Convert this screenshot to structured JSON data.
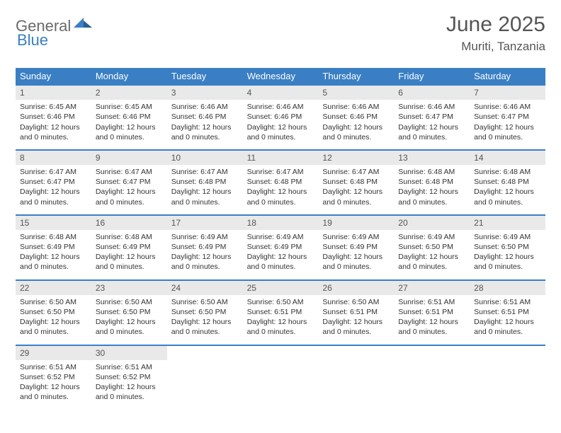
{
  "logo": {
    "text1": "General",
    "text2": "Blue"
  },
  "header": {
    "title": "June 2025",
    "location": "Muriti, Tanzania"
  },
  "colors": {
    "brand_blue": "#3a7fc4",
    "logo_gray": "#6a6a6a",
    "daybar_bg": "#e9e9e9",
    "text": "#333333",
    "title_text": "#555555"
  },
  "weekdays": [
    "Sunday",
    "Monday",
    "Tuesday",
    "Wednesday",
    "Thursday",
    "Friday",
    "Saturday"
  ],
  "weeks": [
    [
      {
        "n": "1",
        "sr": "6:45 AM",
        "ss": "6:46 PM",
        "dl": "12 hours and 0 minutes."
      },
      {
        "n": "2",
        "sr": "6:45 AM",
        "ss": "6:46 PM",
        "dl": "12 hours and 0 minutes."
      },
      {
        "n": "3",
        "sr": "6:46 AM",
        "ss": "6:46 PM",
        "dl": "12 hours and 0 minutes."
      },
      {
        "n": "4",
        "sr": "6:46 AM",
        "ss": "6:46 PM",
        "dl": "12 hours and 0 minutes."
      },
      {
        "n": "5",
        "sr": "6:46 AM",
        "ss": "6:46 PM",
        "dl": "12 hours and 0 minutes."
      },
      {
        "n": "6",
        "sr": "6:46 AM",
        "ss": "6:47 PM",
        "dl": "12 hours and 0 minutes."
      },
      {
        "n": "7",
        "sr": "6:46 AM",
        "ss": "6:47 PM",
        "dl": "12 hours and 0 minutes."
      }
    ],
    [
      {
        "n": "8",
        "sr": "6:47 AM",
        "ss": "6:47 PM",
        "dl": "12 hours and 0 minutes."
      },
      {
        "n": "9",
        "sr": "6:47 AM",
        "ss": "6:47 PM",
        "dl": "12 hours and 0 minutes."
      },
      {
        "n": "10",
        "sr": "6:47 AM",
        "ss": "6:48 PM",
        "dl": "12 hours and 0 minutes."
      },
      {
        "n": "11",
        "sr": "6:47 AM",
        "ss": "6:48 PM",
        "dl": "12 hours and 0 minutes."
      },
      {
        "n": "12",
        "sr": "6:47 AM",
        "ss": "6:48 PM",
        "dl": "12 hours and 0 minutes."
      },
      {
        "n": "13",
        "sr": "6:48 AM",
        "ss": "6:48 PM",
        "dl": "12 hours and 0 minutes."
      },
      {
        "n": "14",
        "sr": "6:48 AM",
        "ss": "6:48 PM",
        "dl": "12 hours and 0 minutes."
      }
    ],
    [
      {
        "n": "15",
        "sr": "6:48 AM",
        "ss": "6:49 PM",
        "dl": "12 hours and 0 minutes."
      },
      {
        "n": "16",
        "sr": "6:48 AM",
        "ss": "6:49 PM",
        "dl": "12 hours and 0 minutes."
      },
      {
        "n": "17",
        "sr": "6:49 AM",
        "ss": "6:49 PM",
        "dl": "12 hours and 0 minutes."
      },
      {
        "n": "18",
        "sr": "6:49 AM",
        "ss": "6:49 PM",
        "dl": "12 hours and 0 minutes."
      },
      {
        "n": "19",
        "sr": "6:49 AM",
        "ss": "6:49 PM",
        "dl": "12 hours and 0 minutes."
      },
      {
        "n": "20",
        "sr": "6:49 AM",
        "ss": "6:50 PM",
        "dl": "12 hours and 0 minutes."
      },
      {
        "n": "21",
        "sr": "6:49 AM",
        "ss": "6:50 PM",
        "dl": "12 hours and 0 minutes."
      }
    ],
    [
      {
        "n": "22",
        "sr": "6:50 AM",
        "ss": "6:50 PM",
        "dl": "12 hours and 0 minutes."
      },
      {
        "n": "23",
        "sr": "6:50 AM",
        "ss": "6:50 PM",
        "dl": "12 hours and 0 minutes."
      },
      {
        "n": "24",
        "sr": "6:50 AM",
        "ss": "6:50 PM",
        "dl": "12 hours and 0 minutes."
      },
      {
        "n": "25",
        "sr": "6:50 AM",
        "ss": "6:51 PM",
        "dl": "12 hours and 0 minutes."
      },
      {
        "n": "26",
        "sr": "6:50 AM",
        "ss": "6:51 PM",
        "dl": "12 hours and 0 minutes."
      },
      {
        "n": "27",
        "sr": "6:51 AM",
        "ss": "6:51 PM",
        "dl": "12 hours and 0 minutes."
      },
      {
        "n": "28",
        "sr": "6:51 AM",
        "ss": "6:51 PM",
        "dl": "12 hours and 0 minutes."
      }
    ],
    [
      {
        "n": "29",
        "sr": "6:51 AM",
        "ss": "6:52 PM",
        "dl": "12 hours and 0 minutes."
      },
      {
        "n": "30",
        "sr": "6:51 AM",
        "ss": "6:52 PM",
        "dl": "12 hours and 0 minutes."
      },
      null,
      null,
      null,
      null,
      null
    ]
  ],
  "labels": {
    "sunrise": "Sunrise:",
    "sunset": "Sunset:",
    "daylight": "Daylight:"
  }
}
